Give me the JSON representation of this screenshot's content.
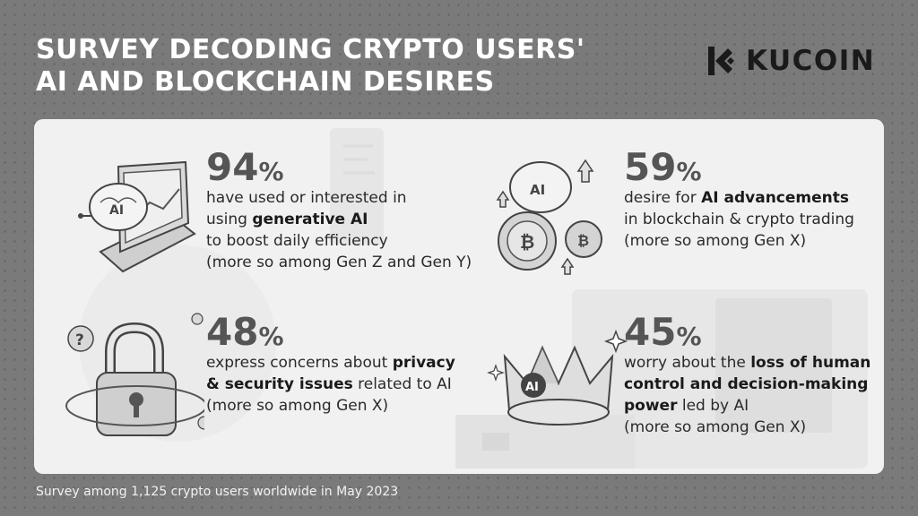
{
  "header": {
    "title_line1": "SURVEY DECODING CRYPTO USERS'",
    "title_line2": "AI AND BLOCKCHAIN DESIRES"
  },
  "logo": {
    "text": "KUCOIN",
    "icon": "kucoin-logo-icon"
  },
  "stats": [
    {
      "value": "94",
      "unit": "%",
      "line1": "have used or interested in",
      "line2_pre": "using ",
      "line2_bold": "generative AI",
      "line3": "to boost daily efficiency",
      "line4": "(more so among Gen Z and Gen Y)",
      "icon": "laptop-ai-brain-icon"
    },
    {
      "value": "59",
      "unit": "%",
      "line1_pre": "desire for ",
      "line1_bold": "AI advancements",
      "line2": "in blockchain & crypto trading",
      "line3": "(more so among Gen X)",
      "icon": "ai-bitcoin-coins-icon"
    },
    {
      "value": "48",
      "unit": "%",
      "line1_pre": "express concerns about ",
      "line1_bold": "privacy",
      "line2_bold": "& security issues",
      "line2_post": " related to AI",
      "line3": "(more so among Gen X)",
      "icon": "padlock-question-icon"
    },
    {
      "value": "45",
      "unit": "%",
      "line1_pre": "worry about the ",
      "line1_bold": "loss of human",
      "line2_bold": "control and decision-making",
      "line3_bold": "power",
      "line3_post": " led by AI",
      "line4": "(more so among Gen X)",
      "icon": "ai-crown-icon"
    }
  ],
  "footer": {
    "text": "Survey among 1,125 crypto users worldwide in May 2023"
  },
  "colors": {
    "background": "#7a7a7a",
    "panel": "#f1f1f1",
    "title": "#ffffff",
    "percent": "#555555"
  }
}
